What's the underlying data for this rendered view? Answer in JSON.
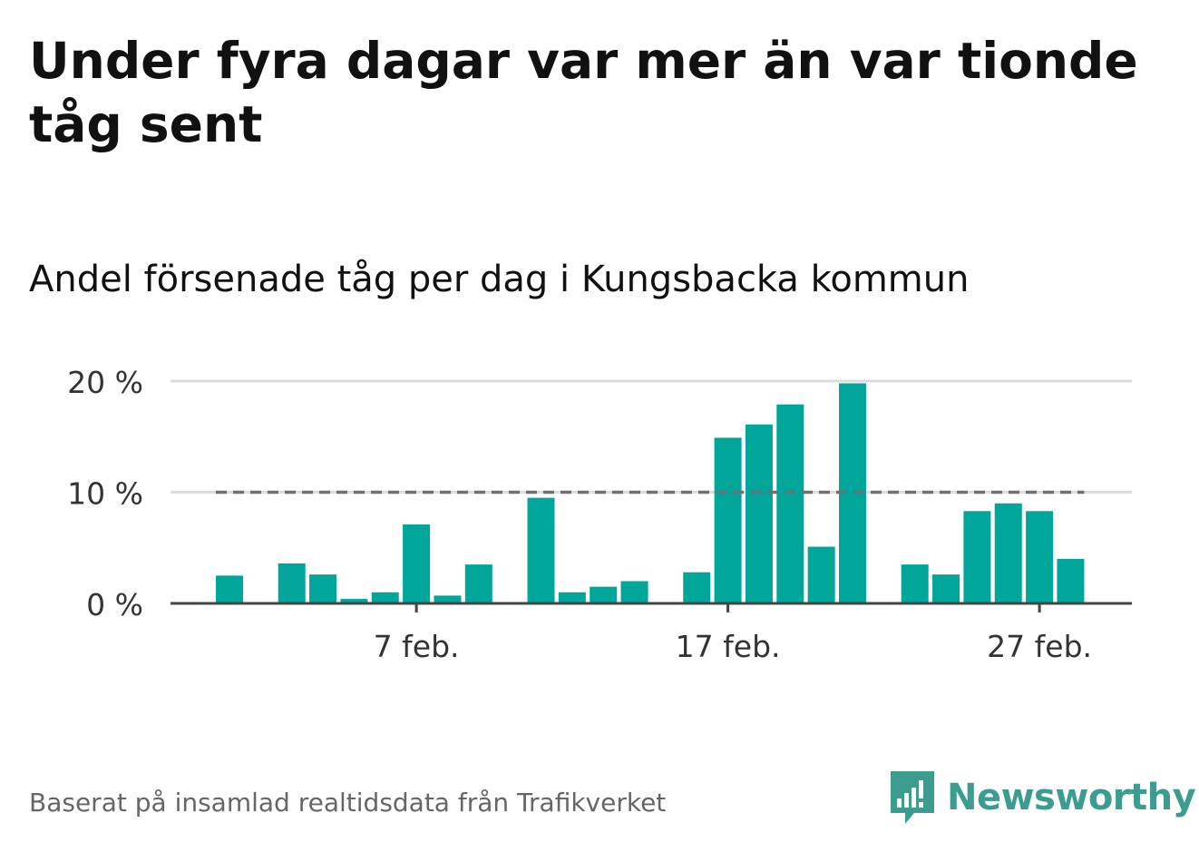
{
  "header": {
    "title": "Under fyra dagar var mer än var tionde tåg sent",
    "subtitle": "Andel försenade tåg per dag i Kungsbacka kommun"
  },
  "footer": {
    "note": "Baserat på insamlad realtidsdata från Trafikverket",
    "brand": "Newsworthy"
  },
  "colors": {
    "bar": "#00a69a",
    "reference_line": "#707070",
    "grid": "#dddddd",
    "axis": "#444444",
    "brand": "#3c9c8f"
  },
  "chart_data": {
    "type": "bar",
    "x_unit": "day of February",
    "x": [
      1,
      2,
      3,
      4,
      5,
      6,
      7,
      8,
      9,
      10,
      11,
      12,
      13,
      14,
      15,
      16,
      17,
      18,
      19,
      20,
      21,
      22,
      23,
      24,
      25,
      26,
      27,
      28
    ],
    "values": [
      2.5,
      0,
      3.6,
      2.6,
      0.4,
      1.0,
      7.1,
      0.7,
      3.5,
      0,
      9.5,
      1.0,
      1.5,
      2.0,
      0,
      2.8,
      14.9,
      16.1,
      17.9,
      5.1,
      19.8,
      0,
      3.5,
      2.6,
      8.3,
      9.0,
      8.3,
      4.0
    ],
    "ylim": [
      0,
      20
    ],
    "y_ticks": [
      0,
      10,
      20
    ],
    "y_tick_labels": [
      "0 %",
      "10 %",
      "20 %"
    ],
    "x_ticks": [
      7,
      17,
      27
    ],
    "x_tick_labels": [
      "7 feb.",
      "17 feb.",
      "27 feb."
    ],
    "reference_line": {
      "value": 10,
      "style": "dashed"
    },
    "grid": true,
    "legend": false
  }
}
